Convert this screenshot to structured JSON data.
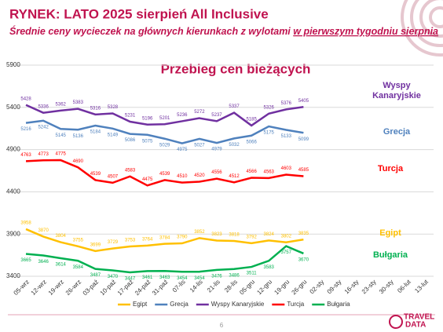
{
  "slide": {
    "title": "RYNEK: LATO 2025 sierpień All Inclusive",
    "subtitle": "Średnie ceny wycieczek na głównych kierunkach z wylotami ",
    "subtitle_underlined": "w pierwszym tygodniu sierpnia",
    "page": "6",
    "logo_top": "TRAVEL",
    "logo_bottom": "DATA"
  },
  "chart_data": {
    "type": "line",
    "title": "Przebieg cen bieżących",
    "categories": [
      "05-wrz",
      "12-wrz",
      "19-wrz",
      "26-wrz",
      "03-paź",
      "10-paź",
      "17-paź",
      "24-paź",
      "31-paź",
      "07-lis",
      "14-lis",
      "21-lis",
      "28-lis",
      "05-gru",
      "12-gru",
      "19-gru",
      "26-gru",
      "02-sty",
      "09-sty",
      "16-sty",
      "23-sty",
      "30-sty",
      "06-lut",
      "13-lut"
    ],
    "ylim": [
      3400,
      5900
    ],
    "yticks": [
      3400,
      3900,
      4400,
      4900,
      5400,
      5900
    ],
    "grid": true,
    "legend": "bottom",
    "series": [
      {
        "name": "Egipt",
        "color": "#ffc000",
        "values": [
          3958,
          3870,
          3804,
          3755,
          3699,
          3729,
          3753,
          3764,
          3784,
          3790,
          3852,
          3823,
          3818,
          3792,
          3824,
          3802,
          3835,
          null,
          null,
          null,
          null,
          null,
          null,
          null
        ]
      },
      {
        "name": "Grecja",
        "color": "#4f81bd",
        "values": [
          5216,
          5242,
          5145,
          5136,
          5184,
          5149,
          5086,
          5075,
          5029,
          4975,
          5027,
          4979,
          5032,
          5066,
          5175,
          5133,
          5099,
          null,
          null,
          null,
          null,
          null,
          null,
          null
        ]
      },
      {
        "name": "Wyspy Kanaryjskie",
        "color": "#7030a0",
        "values": [
          5428,
          5336,
          5362,
          5383,
          5316,
          5328,
          5231,
          5196,
          5201,
          5236,
          5272,
          5237,
          5337,
          5185,
          5326,
          5376,
          5405,
          null,
          null,
          null,
          null,
          null,
          null,
          null
        ]
      },
      {
        "name": "Turcja",
        "color": "#ff0000",
        "values": [
          4763,
          4773,
          4775,
          4690,
          4539,
          4507,
          4583,
          4475,
          4539,
          4510,
          4520,
          4556,
          4512,
          4566,
          4563,
          4603,
          4585,
          null,
          null,
          null,
          null,
          null,
          null,
          null
        ]
      },
      {
        "name": "Bułgaria",
        "color": "#00b050",
        "values": [
          3665,
          3646,
          3614,
          3584,
          3487,
          3470,
          3447,
          3461,
          3463,
          3454,
          3454,
          3476,
          3486,
          3511,
          3583,
          3757,
          3670,
          null,
          null,
          null,
          null,
          null,
          null,
          null
        ]
      }
    ]
  }
}
